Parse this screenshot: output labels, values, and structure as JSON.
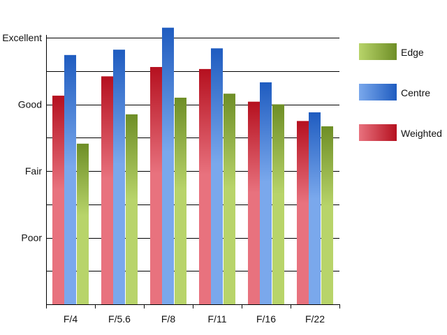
{
  "chart_data": {
    "type": "bar",
    "categories": [
      "F/4",
      "F/5.6",
      "F/8",
      "F/11",
      "F/16",
      "F/22"
    ],
    "series": [
      {
        "name": "Weighted",
        "values": [
          3.13,
          3.42,
          3.56,
          3.53,
          3.04,
          2.75
        ]
      },
      {
        "name": "Centre",
        "values": [
          3.74,
          3.82,
          4.15,
          3.84,
          3.33,
          2.88
        ]
      },
      {
        "name": "Edge",
        "values": [
          2.41,
          2.85,
          3.1,
          3.16,
          3.0,
          2.67
        ]
      }
    ],
    "y_tick_labels": [
      {
        "value": 1,
        "label": "Poor"
      },
      {
        "value": 2,
        "label": "Fair"
      },
      {
        "value": 3,
        "label": "Good"
      },
      {
        "value": 4,
        "label": "Excellent"
      }
    ],
    "ylim": [
      0,
      4
    ],
    "grid": true,
    "legend": {
      "position": "right",
      "entries": [
        "Edge",
        "Centre",
        "Weighted"
      ]
    },
    "colors": {
      "Weighted": {
        "light": "#e8727e",
        "dark": "#b5101f"
      },
      "Centre": {
        "light": "#7aa8ec",
        "dark": "#1f5cc0"
      },
      "Edge": {
        "light": "#b8d46a",
        "dark": "#6e8e26"
      }
    }
  }
}
